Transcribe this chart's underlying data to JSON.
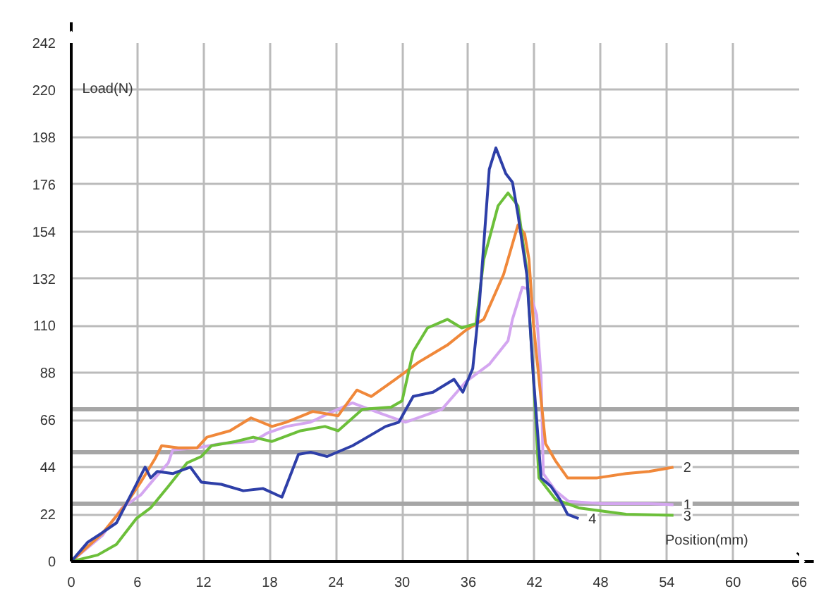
{
  "chart_data": {
    "type": "line",
    "xlabel": "Position(mm)",
    "ylabel": "Load(N)",
    "xlim": [
      0,
      66
    ],
    "ylim": [
      0,
      242
    ],
    "xticks": [
      0,
      6,
      12,
      18,
      24,
      30,
      36,
      42,
      48,
      54,
      60,
      66
    ],
    "yticks": [
      0,
      22,
      44,
      66,
      88,
      110,
      132,
      154,
      176,
      198,
      220,
      242
    ],
    "grid": true,
    "marker": "none",
    "line_style": "solid",
    "ref_lines": [
      {
        "axis": "y",
        "value": 71,
        "color": "#a6a6a6"
      },
      {
        "axis": "y",
        "value": 51,
        "color": "#a6a6a6"
      },
      {
        "axis": "y",
        "value": 27,
        "color": "#a6a6a6"
      }
    ],
    "series": [
      {
        "name": "1",
        "color": "#d4a6f0",
        "x": [
          0,
          2.8,
          4.6,
          6.3,
          7.6,
          8.8,
          9.2,
          11.4,
          13.6,
          16.5,
          17.8,
          19.5,
          21.7,
          23.3,
          25.5,
          28.1,
          30.3,
          33.6,
          35.8,
          37.9,
          39.6,
          40,
          40.9,
          41.5,
          42.2,
          42.6,
          42.8,
          43.9,
          45.1,
          48.2,
          52.4,
          54.6
        ],
        "values": [
          0,
          12,
          25,
          31,
          39,
          46,
          52,
          53,
          55,
          56,
          60,
          63,
          65,
          69,
          74,
          69,
          65,
          71,
          84,
          92,
          103,
          113,
          128,
          127,
          115,
          86,
          41,
          33,
          28,
          27,
          27,
          26.5
        ]
      },
      {
        "name": "2",
        "color": "#f0883a",
        "x": [
          0,
          2.8,
          5,
          6.3,
          7.6,
          8.2,
          9.7,
          11.4,
          12.3,
          14.4,
          16.3,
          18.2,
          19.5,
          21.9,
          24.2,
          25.9,
          27.2,
          29.4,
          31.5,
          34.1,
          35.8,
          37.4,
          39.2,
          40.5,
          41.1,
          41.5,
          41.9,
          43,
          43.9,
          45,
          47.7,
          50.3,
          52.4,
          54.6
        ],
        "values": [
          0,
          13,
          27,
          37,
          48,
          54,
          53,
          53,
          58,
          61,
          67,
          63,
          65,
          70,
          68,
          80,
          77,
          85,
          93,
          101,
          108,
          113,
          134,
          157,
          153,
          141,
          111,
          55,
          47,
          39,
          39,
          41,
          42,
          44
        ]
      },
      {
        "name": "3",
        "color": "#6cbf3a",
        "x": [
          0,
          2.4,
          4.1,
          5.9,
          7.2,
          8.8,
          10.5,
          11.8,
          12.7,
          14.9,
          16.5,
          18.2,
          20.8,
          23,
          24.2,
          26.4,
          29,
          30,
          31,
          32.3,
          34.1,
          35.4,
          36.7,
          37.4,
          38.7,
          39.6,
          40.5,
          41.3,
          41.9,
          42.4,
          43.9,
          46,
          50.3,
          54.6
        ],
        "values": [
          0,
          3,
          8,
          20,
          25,
          35,
          46,
          49,
          54,
          56,
          58,
          56,
          61,
          63,
          61,
          71,
          72,
          75,
          98,
          109,
          113,
          109,
          111,
          141,
          166,
          172,
          166,
          136,
          86,
          39,
          29,
          25,
          22,
          21.5
        ]
      },
      {
        "name": "4",
        "color": "#2e3fa8",
        "x": [
          0,
          1.5,
          2.7,
          4.1,
          5.6,
          6.7,
          7.2,
          7.8,
          9.2,
          10.8,
          11.8,
          13.6,
          15.6,
          17.4,
          19.1,
          20.6,
          21.7,
          23.2,
          25.5,
          28.5,
          29.7,
          31,
          32.8,
          34.7,
          35.5,
          36.4,
          37,
          37.9,
          38.5,
          39.4,
          40,
          40.5,
          41.3,
          41.9,
          42.6,
          43.5,
          44.3,
          45,
          46
        ],
        "values": [
          0,
          9,
          13,
          18,
          33,
          44,
          39,
          42,
          41,
          44,
          37,
          36,
          33,
          34,
          30,
          50,
          51,
          49,
          54,
          63,
          65,
          77,
          79,
          85,
          79,
          90,
          120,
          183,
          193,
          181,
          177,
          162,
          134,
          86,
          39,
          35,
          29,
          22,
          20
        ]
      }
    ]
  }
}
